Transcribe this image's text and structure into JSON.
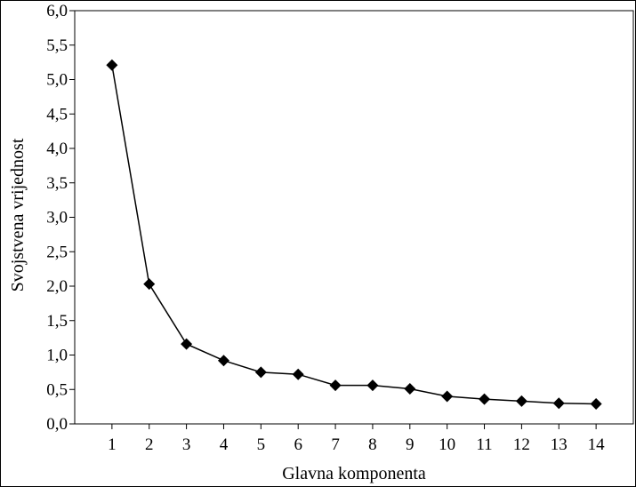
{
  "chart_data": {
    "type": "line",
    "xlabel": "Glavna komponenta",
    "ylabel": "Svojstvena vrijednost",
    "x": [
      1,
      2,
      3,
      4,
      5,
      6,
      7,
      8,
      9,
      10,
      11,
      12,
      13,
      14
    ],
    "series": [
      {
        "values": [
          5.21,
          2.03,
          1.16,
          0.92,
          0.75,
          0.72,
          0.56,
          0.56,
          0.51,
          0.4,
          0.36,
          0.33,
          0.3,
          0.29
        ],
        "color": "#000000",
        "marker": "diamond"
      }
    ],
    "ylim": [
      0,
      6
    ],
    "xlim": [
      0,
      15
    ],
    "y_ticks": [
      "0,0",
      "0,5",
      "1,0",
      "1,5",
      "2,0",
      "2,5",
      "3,0",
      "3,5",
      "4,0",
      "4,5",
      "5,0",
      "5,5",
      "6,0"
    ],
    "x_ticks": [
      "1",
      "2",
      "3",
      "4",
      "5",
      "6",
      "7",
      "8",
      "9",
      "10",
      "11",
      "12",
      "13",
      "14"
    ],
    "grid": false
  }
}
